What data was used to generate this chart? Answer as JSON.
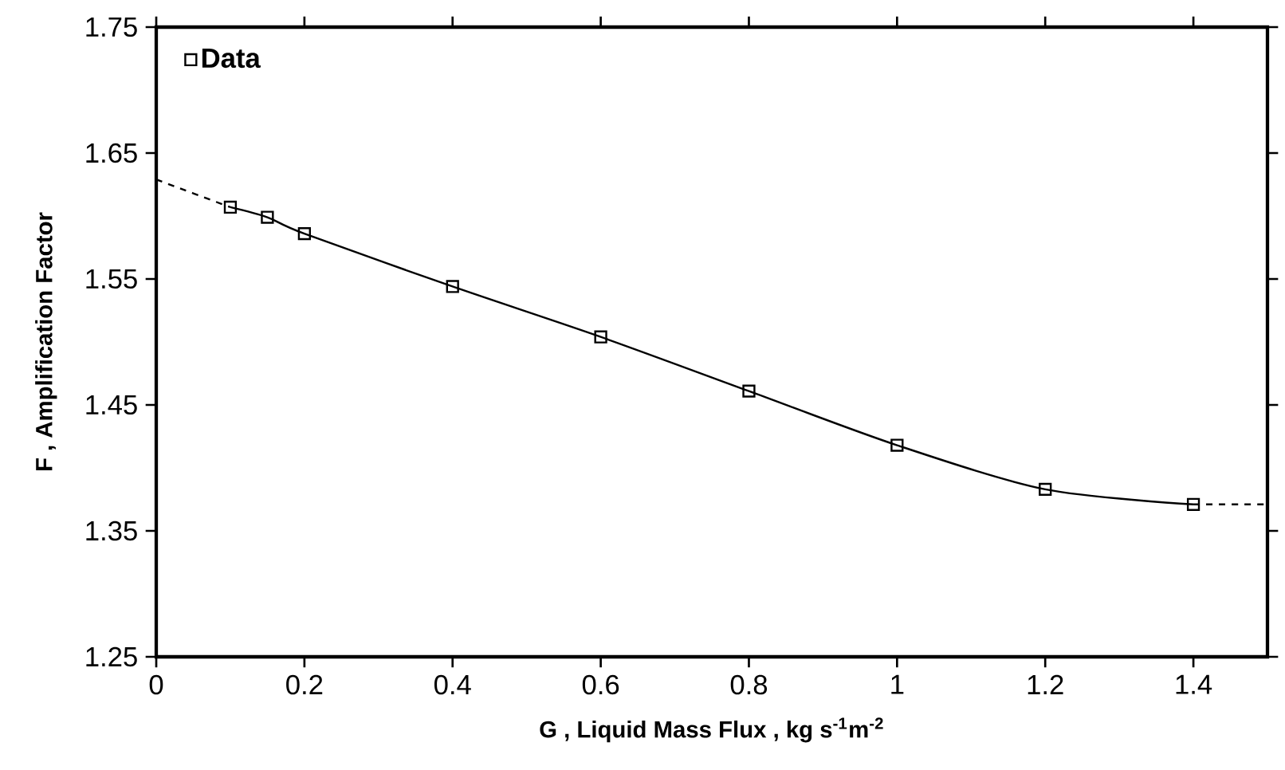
{
  "chart_data": {
    "type": "scatter",
    "xlabel": "G , Liquid Mass Flux ,  kg s$^{-1}$m$^{-2}$",
    "ylabel": "F , Amplification Factor",
    "xlim": [
      0,
      1.5
    ],
    "ylim": [
      1.25,
      1.75
    ],
    "xticks": [
      0,
      0.2,
      0.4,
      0.6,
      0.8,
      1,
      1.2,
      1.4
    ],
    "yticks": [
      1.25,
      1.35,
      1.45,
      1.55,
      1.65,
      1.75
    ],
    "legend": "top left",
    "grid": false,
    "series": [
      {
        "type": "line",
        "marker": "none",
        "color": "#000000",
        "x": [
          0.1,
          0.15,
          0.2,
          0.4,
          0.6,
          0.8,
          1,
          1.2,
          1.4
        ],
        "values": [
          1.607,
          1.599,
          1.586,
          1.544,
          1.504,
          1.461,
          1.418,
          1.383,
          1.371
        ]
      },
      {
        "type": "line",
        "marker": "none",
        "line_style": "dashed",
        "color": "#000000",
        "x": [
          0,
          0.1,
          null,
          1.4,
          1.5
        ],
        "values": [
          1.629,
          1.607,
          null,
          1.371,
          1.371
        ]
      },
      {
        "marker": "square",
        "name": "Data",
        "color": "#000000",
        "x": [
          0.1,
          0.15,
          0.2,
          0.4,
          0.6,
          0.8,
          1,
          1.2,
          1.4
        ],
        "values": [
          1.607,
          1.599,
          1.586,
          1.544,
          1.504,
          1.461,
          1.418,
          1.383,
          1.371
        ]
      }
    ]
  }
}
